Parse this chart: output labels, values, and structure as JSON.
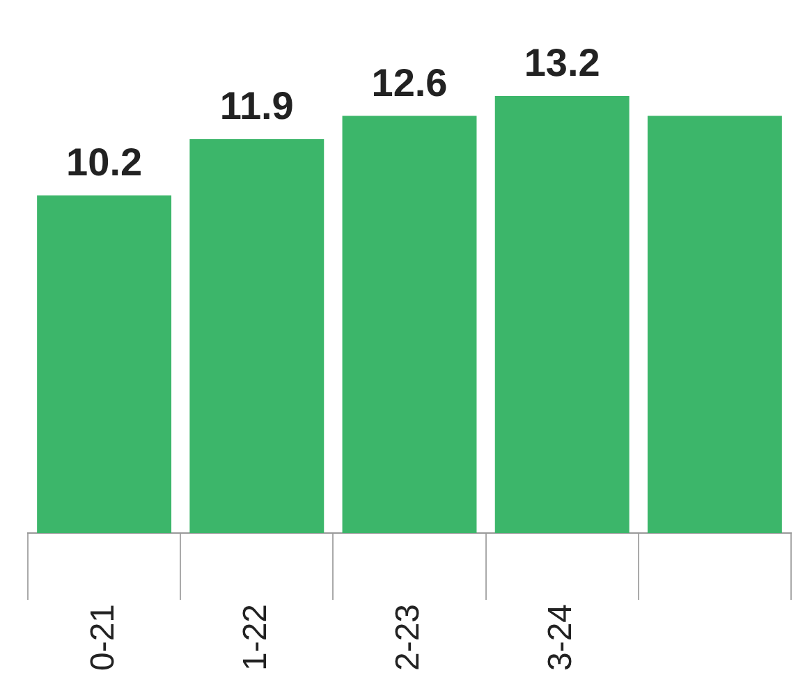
{
  "chart_data": {
    "type": "bar",
    "categories": [
      "0-21",
      "1-22",
      "2-23",
      "3-24",
      null
    ],
    "values": [
      10.2,
      11.9,
      12.6,
      13.2,
      12.6
    ],
    "color": "#3cb66a",
    "value_labels": [
      "10.2",
      "11.9",
      "12.6",
      "13.2",
      null
    ]
  }
}
